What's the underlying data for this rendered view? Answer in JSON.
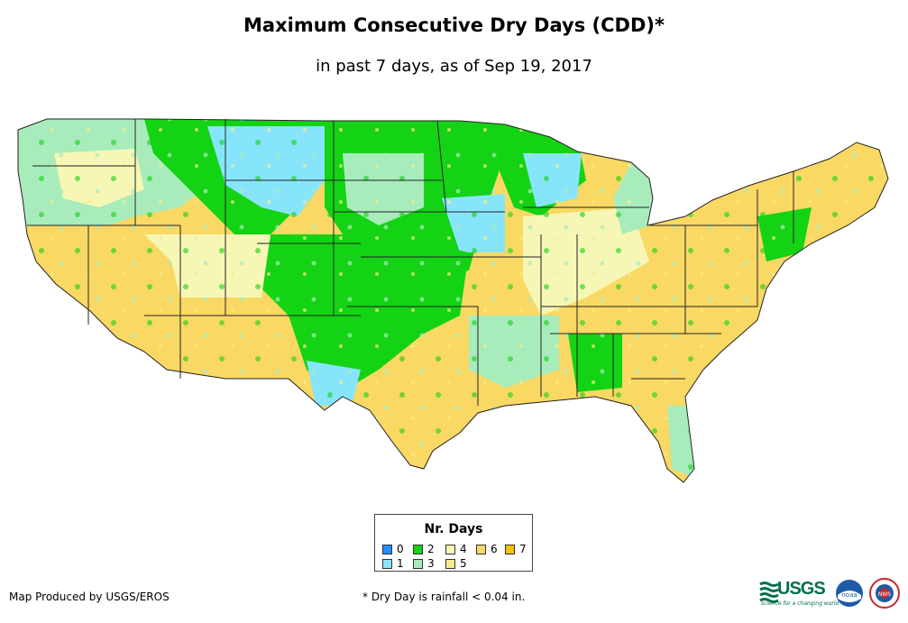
{
  "header": {
    "title": "Maximum Consecutive Dry Days (CDD)*",
    "subtitle": "in past 7 days, as of Sep 19, 2017"
  },
  "legend": {
    "title": "Nr. Days",
    "items": [
      {
        "label": "0",
        "color": "#1e90ff"
      },
      {
        "label": "1",
        "color": "#87e5fb"
      },
      {
        "label": "2",
        "color": "#14d214"
      },
      {
        "label": "3",
        "color": "#a8ecbc"
      },
      {
        "label": "4",
        "color": "#f7f7b5"
      },
      {
        "label": "5",
        "color": "#faec8c"
      },
      {
        "label": "6",
        "color": "#f9d864"
      },
      {
        "label": "7",
        "color": "#f6c20c"
      }
    ]
  },
  "footer": {
    "producer": "Map Produced by USGS/EROS",
    "note": "* Dry Day is rainfall < 0.04 in."
  },
  "logos": {
    "usgs": "USGS",
    "usgs_tagline": "science for a changing world",
    "noaa": "noaa",
    "nws": "NWS"
  },
  "map": {
    "region": "Contiguous United States",
    "state_outlines": true
  }
}
